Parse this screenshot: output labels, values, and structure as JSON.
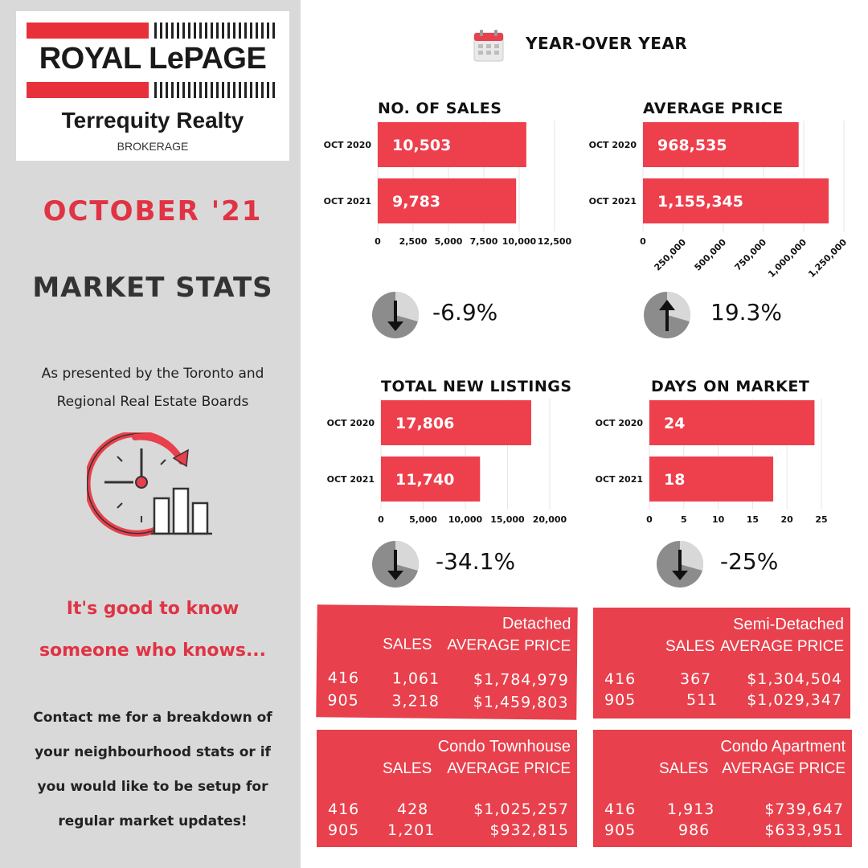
{
  "brand": {
    "name": "ROYAL LePAGE",
    "office": "Terrequity Realty",
    "type": "BROKERAGE"
  },
  "left": {
    "month": "OCTOBER '21",
    "title": "MARKET STATS",
    "presented_line1": "As presented by the Toronto and",
    "presented_line2": "Regional Real Estate Boards",
    "tagline_line1": "It's good to know",
    "tagline_line2": "someone who knows...",
    "contact_line1": "Contact me for a breakdown of",
    "contact_line2": "your neighbourhood stats or if",
    "contact_line3": "you would like to be setup for",
    "contact_line4": "regular market updates!"
  },
  "header": {
    "title": "YEAR-OVER YEAR"
  },
  "colors": {
    "accent": "#e8404c",
    "bar": "#ee3f4c",
    "panel": "#d9d9d9"
  },
  "chart_data": [
    {
      "type": "bar",
      "orientation": "horizontal",
      "title": "NO. OF SALES",
      "categories": [
        "OCT 2020",
        "OCT 2021"
      ],
      "values": [
        10503,
        9783
      ],
      "value_labels": [
        "10,503",
        "9,783"
      ],
      "xlim": [
        0,
        12500
      ],
      "ticks": [
        0,
        2500,
        5000,
        7500,
        10000,
        12500
      ],
      "tick_labels": [
        "0",
        "2,500",
        "5,000",
        "7,500",
        "10,000",
        "12,500"
      ],
      "tick_rotation": 0,
      "change": "-6.9%",
      "direction": "down"
    },
    {
      "type": "bar",
      "orientation": "horizontal",
      "title": "AVERAGE PRICE",
      "categories": [
        "OCT 2020",
        "OCT 2021"
      ],
      "values": [
        968535,
        1155345
      ],
      "value_labels": [
        "968,535",
        "1,155,345"
      ],
      "xlim": [
        0,
        1250000
      ],
      "ticks": [
        0,
        250000,
        500000,
        750000,
        1000000,
        1250000
      ],
      "tick_labels": [
        "0",
        "250,000",
        "500,000",
        "750,000",
        "1,000,000",
        "1,250,000"
      ],
      "tick_rotation": -45,
      "change": "19.3%",
      "direction": "up"
    },
    {
      "type": "bar",
      "orientation": "horizontal",
      "title": "TOTAL NEW LISTINGS",
      "categories": [
        "OCT 2020",
        "OCT 2021"
      ],
      "values": [
        17806,
        11740
      ],
      "value_labels": [
        "17,806",
        "11,740"
      ],
      "xlim": [
        0,
        20000
      ],
      "ticks": [
        0,
        5000,
        10000,
        15000,
        20000
      ],
      "tick_labels": [
        "0",
        "5,000",
        "10,000",
        "15,000",
        "20,000"
      ],
      "tick_rotation": 0,
      "change": "-34.1%",
      "direction": "down"
    },
    {
      "type": "bar",
      "orientation": "horizontal",
      "title": "DAYS ON MARKET",
      "categories": [
        "OCT 2020",
        "OCT 2021"
      ],
      "values": [
        24,
        18
      ],
      "value_labels": [
        "24",
        "18"
      ],
      "xlim": [
        0,
        25
      ],
      "ticks": [
        0,
        5,
        10,
        15,
        20,
        25
      ],
      "tick_labels": [
        "0",
        "5",
        "10",
        "15",
        "20",
        "25"
      ],
      "tick_rotation": 0,
      "change": "-25%",
      "direction": "down"
    }
  ],
  "tables": [
    {
      "title": "Detached",
      "sales_label": "SALES",
      "avg_label": "AVERAGE PRICE",
      "rows": [
        {
          "region": "416",
          "sales": "1,061",
          "avg": "$1,784,979"
        },
        {
          "region": "905",
          "sales": "3,218",
          "avg": "$1,459,803"
        }
      ]
    },
    {
      "title": "Semi-Detached",
      "sales_label": "SALES",
      "avg_label": "AVERAGE PRICE",
      "rows": [
        {
          "region": "416",
          "sales": "367",
          "avg": "$1,304,504"
        },
        {
          "region": "905",
          "sales": "511",
          "avg": "$1,029,347"
        }
      ]
    },
    {
      "title": "Condo Townhouse",
      "sales_label": "SALES",
      "avg_label": "AVERAGE PRICE",
      "rows": [
        {
          "region": "416",
          "sales": "428",
          "avg": "$1,025,257"
        },
        {
          "region": "905",
          "sales": "1,201",
          "avg": "$932,815"
        }
      ]
    },
    {
      "title": "Condo Apartment",
      "sales_label": "SALES",
      "avg_label": "AVERAGE PRICE",
      "rows": [
        {
          "region": "416",
          "sales": "1,913",
          "avg": "$739,647"
        },
        {
          "region": "905",
          "sales": "986",
          "avg": "$633,951"
        }
      ]
    }
  ]
}
